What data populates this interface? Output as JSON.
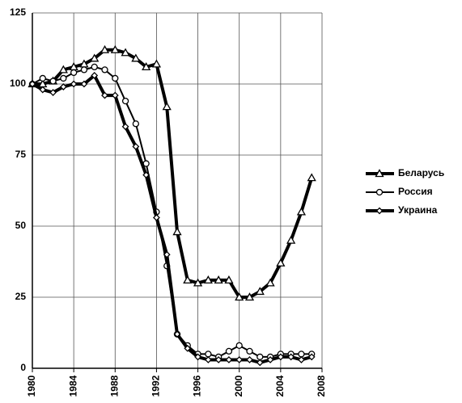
{
  "chart_data": {
    "type": "line",
    "x": [
      1980,
      1981,
      1982,
      1983,
      1984,
      1985,
      1986,
      1987,
      1988,
      1989,
      1990,
      1991,
      1992,
      1993,
      1994,
      1995,
      1996,
      1997,
      1998,
      1999,
      2000,
      2001,
      2002,
      2003,
      2004,
      2005,
      2006,
      2007
    ],
    "series": [
      {
        "name": "Беларусь",
        "color": "#000000",
        "marker": "triangle",
        "line_width": 4,
        "values": [
          100,
          100,
          101,
          105,
          106,
          107,
          109,
          112,
          112,
          111,
          109,
          106,
          107,
          92,
          48,
          31,
          30,
          31,
          31,
          31,
          25,
          25,
          27,
          30,
          37,
          45,
          55,
          67
        ]
      },
      {
        "name": "Россия",
        "color": "#000000",
        "marker": "circle",
        "line_width": 2,
        "values": [
          100,
          102,
          101,
          102,
          104,
          105,
          106,
          105,
          102,
          94,
          86,
          72,
          55,
          36,
          12,
          8,
          5,
          5,
          4,
          6,
          8,
          6,
          4,
          4,
          5,
          5,
          5,
          5
        ]
      },
      {
        "name": "Украина",
        "color": "#000000",
        "marker": "diamond",
        "line_width": 4,
        "values": [
          100,
          98,
          97,
          99,
          100,
          100,
          103,
          96,
          96,
          85,
          78,
          68,
          53,
          40,
          12,
          7,
          4,
          3,
          3,
          3,
          3,
          3,
          2,
          3,
          4,
          4,
          3,
          4
        ]
      }
    ],
    "xlim": [
      1980,
      2008
    ],
    "xticks": [
      1980,
      1984,
      1988,
      1992,
      1996,
      2000,
      2004,
      2008
    ],
    "ylim": [
      0,
      125
    ],
    "yticks": [
      0,
      25,
      50,
      75,
      100,
      125
    ],
    "grid": true,
    "legend": "right"
  }
}
